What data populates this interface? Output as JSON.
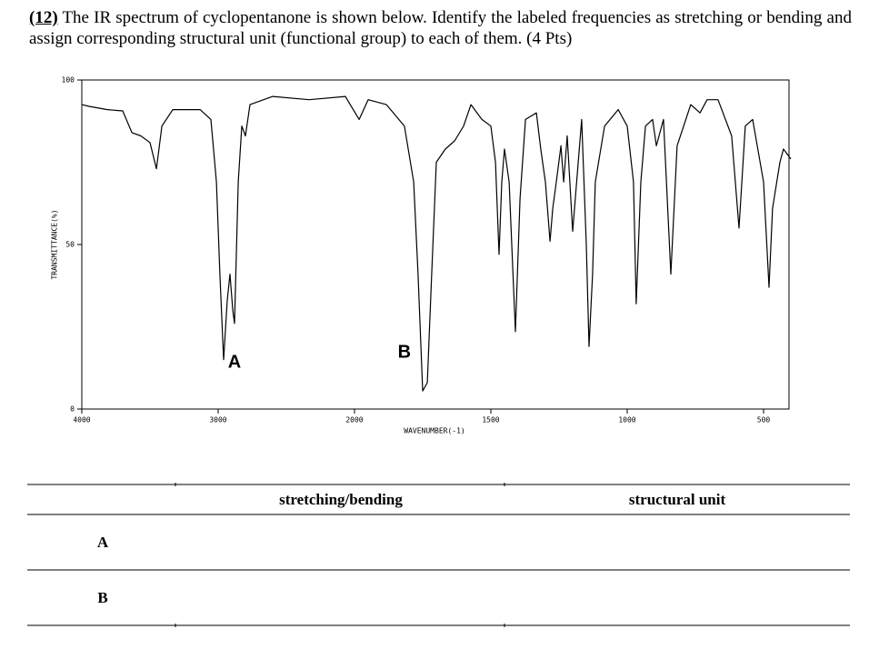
{
  "question": {
    "number": "(12)",
    "text": "The IR spectrum of cyclopentanone is shown below. Identify the labeled frequencies as stretching or bending and assign corresponding structural unit (functional group) to each of them. (4 Pts)"
  },
  "chart_data": {
    "type": "line",
    "xlabel": "WAVENUMBER(-1)",
    "ylabel": "TRANSMITTANCE(%)",
    "x": [
      4000,
      3947,
      3813,
      3700,
      3633,
      3567,
      3500,
      3453,
      3413,
      3333,
      3133,
      3053,
      3013,
      2987,
      2960,
      2933,
      2913,
      2893,
      2880,
      2853,
      2827,
      2800,
      2767,
      2600,
      2333,
      2067,
      1983,
      1950,
      1883,
      1817,
      1783,
      1767,
      1750,
      1733,
      1717,
      1700,
      1667,
      1633,
      1600,
      1573,
      1533,
      1500,
      1483,
      1470,
      1460,
      1450,
      1433,
      1410,
      1393,
      1373,
      1333,
      1317,
      1300,
      1283,
      1273,
      1260,
      1243,
      1233,
      1220,
      1200,
      1167,
      1150,
      1140,
      1127,
      1117,
      1083,
      1033,
      1000,
      977,
      967,
      950,
      933,
      907,
      893,
      867,
      840,
      817,
      767,
      733,
      707,
      667,
      617,
      590,
      567,
      540,
      500,
      480,
      467,
      440,
      427,
      400
    ],
    "values": [
      92.5,
      92,
      91,
      90.6,
      84,
      83,
      81,
      73,
      86,
      91,
      91,
      88,
      69,
      41,
      15,
      33,
      41,
      30,
      26,
      69,
      86,
      83,
      92.5,
      95,
      94,
      95,
      88,
      94,
      92.5,
      86,
      69,
      41,
      5.5,
      8,
      41,
      75,
      79,
      81.5,
      86,
      92.5,
      88,
      86,
      75,
      47,
      69,
      79,
      69,
      23.5,
      64,
      88,
      90,
      79,
      69,
      51,
      61,
      69,
      80,
      69,
      83,
      54,
      88,
      50,
      19,
      41,
      69,
      86,
      91,
      86,
      69,
      32,
      69,
      86,
      88,
      80,
      88,
      41,
      80,
      92.5,
      90,
      94,
      94,
      83,
      55,
      86,
      88,
      69,
      37,
      61,
      75,
      79,
      76
    ],
    "color": "#000000",
    "xlim": [
      4000,
      400
    ],
    "xticks": [
      4000,
      3000,
      2000,
      1500,
      1000,
      500
    ],
    "ylim": [
      0,
      100
    ],
    "yticks": [
      0,
      50,
      100
    ],
    "annotations": [
      {
        "text": "A",
        "x": 2880,
        "y": 14
      },
      {
        "text": "B",
        "x": 1817,
        "y": 17
      }
    ]
  },
  "table": {
    "columns": [
      "stretching/bending",
      "structural unit"
    ],
    "rows": [
      "A",
      "B"
    ]
  }
}
